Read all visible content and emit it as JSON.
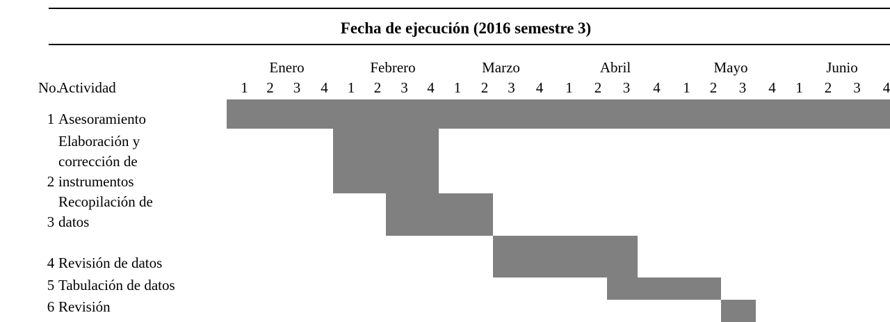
{
  "header": {
    "title": "Fecha de ejecución (2016 semestre 3)"
  },
  "columns": {
    "number": "No.",
    "activity": "Actividad"
  },
  "months": [
    "Enero",
    "Febrero",
    "Marzo",
    "Abril",
    "Mayo",
    "Junio"
  ],
  "weeks": [
    "1",
    "2",
    "3",
    "4",
    "1",
    "2",
    "3",
    "4",
    "1",
    "2",
    "3",
    "4",
    "1",
    "2",
    "3",
    "4",
    "1",
    "2",
    "3",
    "4",
    "1",
    "2",
    "3",
    "4"
  ],
  "rows": [
    {
      "number": "1",
      "activity": [
        "Asesoramiento"
      ]
    },
    {
      "number": "2",
      "activity": [
        "Elaboración y",
        "corrección de",
        "instrumentos"
      ]
    },
    {
      "number": "3",
      "activity": [
        "Recopilación de",
        "datos"
      ]
    },
    {
      "number": "4",
      "activity": [
        "Revisión de datos"
      ]
    },
    {
      "number": "5",
      "activity": [
        "Tabulación de datos"
      ]
    },
    {
      "number": "6",
      "activity": [
        "Revisión"
      ]
    }
  ]
}
